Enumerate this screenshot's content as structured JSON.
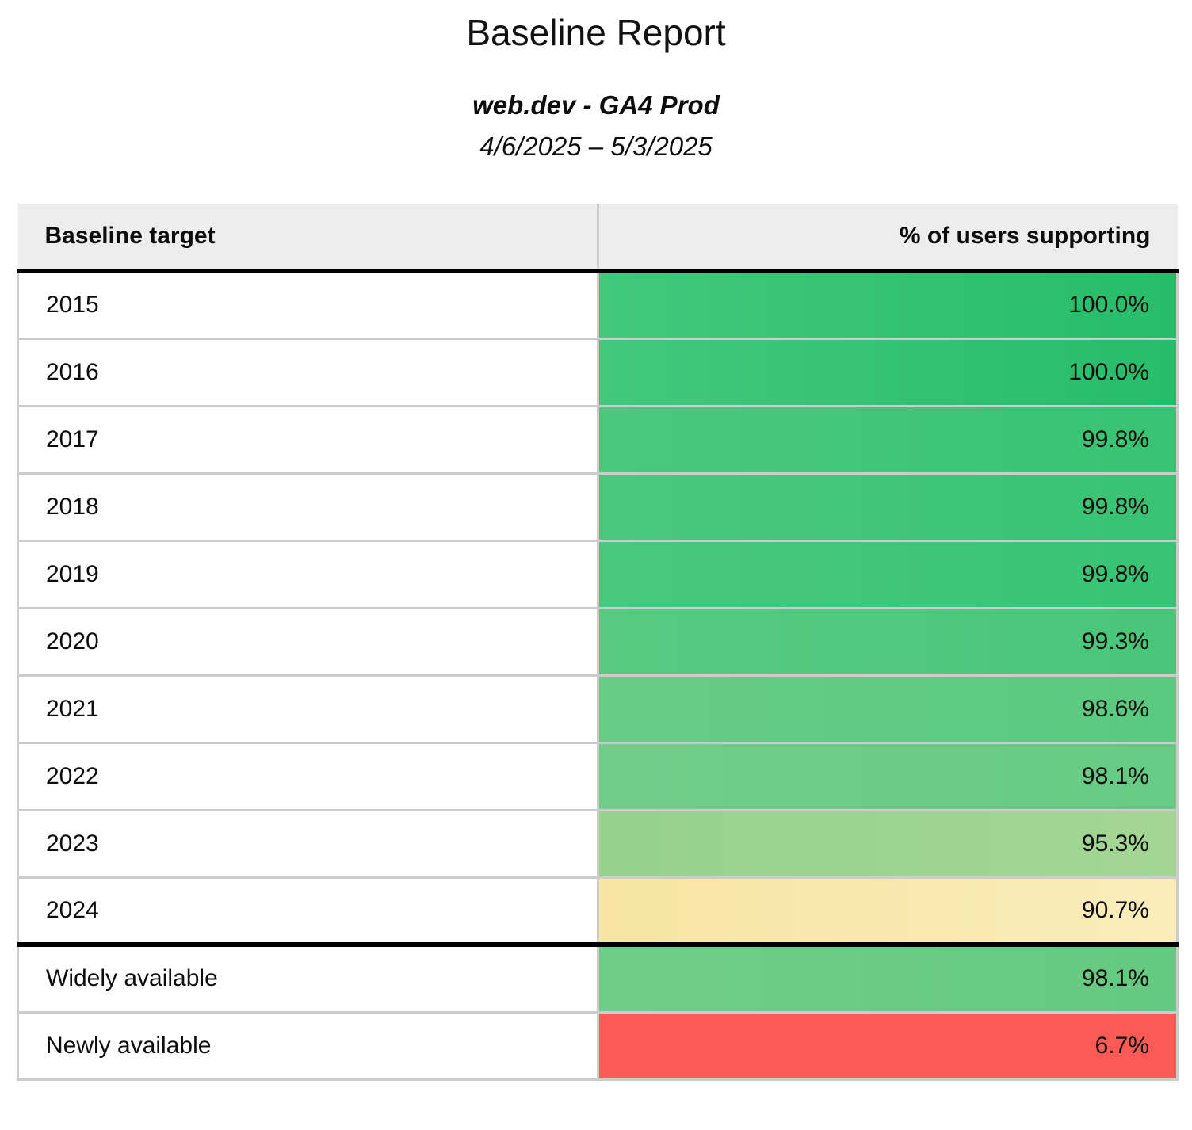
{
  "report": {
    "title": "Baseline Report",
    "subtitle": "web.dev - GA4 Prod",
    "date_range": "4/6/2025 – 5/3/2025"
  },
  "table": {
    "columns": [
      "Baseline target",
      "% of users supporting"
    ],
    "rows": [
      {
        "target": "2015",
        "value": "100.0%",
        "colors": {
          "left": "#43c87c",
          "right": "#26bd6a"
        }
      },
      {
        "target": "2016",
        "value": "100.0%",
        "colors": {
          "left": "#43c87c",
          "right": "#26bd6a"
        }
      },
      {
        "target": "2017",
        "value": "99.8%",
        "colors": {
          "left": "#4ac87e",
          "right": "#37c373"
        }
      },
      {
        "target": "2018",
        "value": "99.8%",
        "colors": {
          "left": "#4ac87e",
          "right": "#37c373"
        }
      },
      {
        "target": "2019",
        "value": "99.8%",
        "colors": {
          "left": "#4ac87e",
          "right": "#37c373"
        }
      },
      {
        "target": "2020",
        "value": "99.3%",
        "colors": {
          "left": "#58ca81",
          "right": "#49c67a"
        }
      },
      {
        "target": "2021",
        "value": "98.6%",
        "colors": {
          "left": "#66cc86",
          "right": "#5ac980"
        }
      },
      {
        "target": "2022",
        "value": "98.1%",
        "colors": {
          "left": "#71ce8a",
          "right": "#66cb84"
        }
      },
      {
        "target": "2023",
        "value": "95.3%",
        "colors": {
          "left": "#96d28c",
          "right": "#a3d693"
        }
      },
      {
        "target": "2024",
        "value": "90.7%",
        "colors": {
          "left": "#f6e5a3",
          "right": "#fbecba"
        }
      },
      {
        "target": "Widely available",
        "value": "98.1%",
        "colors": {
          "left": "#70cd88",
          "right": "#64ca80"
        }
      },
      {
        "target": "Newly available",
        "value": "6.7%",
        "colors": {
          "left": "#fd5b55",
          "right": "#fc5a54"
        }
      }
    ]
  },
  "colors": {
    "header_bg": "#ededed",
    "row_divider": "#cccccc",
    "strong_rule": "#000000"
  },
  "chart_data": {
    "type": "table",
    "title": "Baseline Report",
    "subtitle": "web.dev - GA4 Prod",
    "date_range": "4/6/2025 – 5/3/2025",
    "columns": [
      "Baseline target",
      "% of users supporting"
    ],
    "categories": [
      "2015",
      "2016",
      "2017",
      "2018",
      "2019",
      "2020",
      "2021",
      "2022",
      "2023",
      "2024",
      "Widely available",
      "Newly available"
    ],
    "values": [
      100.0,
      100.0,
      99.8,
      99.8,
      99.8,
      99.3,
      98.6,
      98.1,
      95.3,
      90.7,
      98.1,
      6.7
    ],
    "unit": "%",
    "color_scale": "green-to-red conditional formatting on value column"
  }
}
